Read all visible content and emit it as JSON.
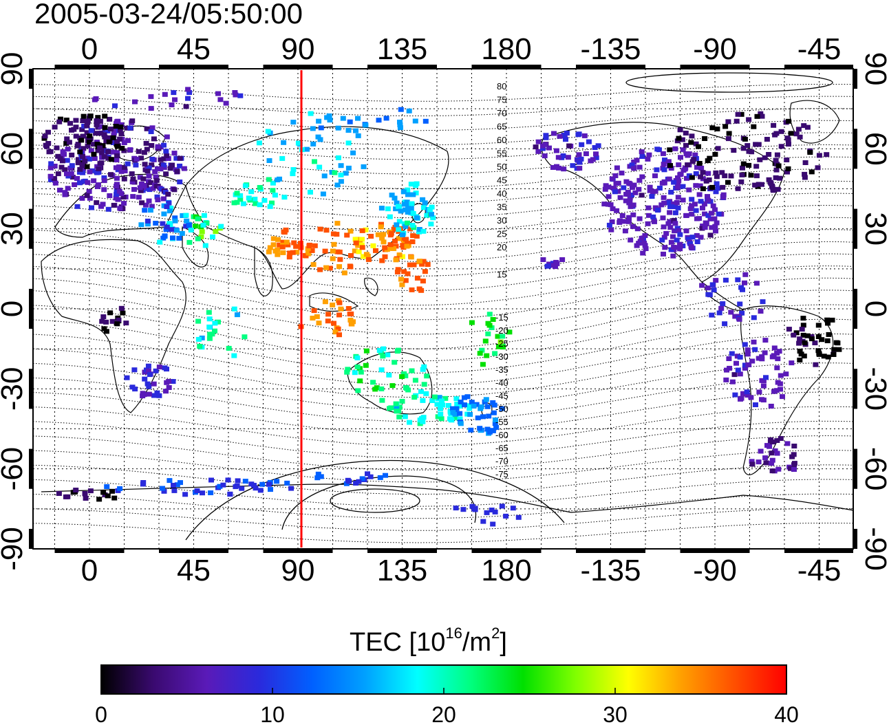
{
  "title": "2005-03-24/05:50:00",
  "map": {
    "x_ticks": [
      "0",
      "45",
      "90",
      "135",
      "180",
      "-135",
      "-90",
      "-45"
    ],
    "y_ticks": [
      "90",
      "60",
      "30",
      "0",
      "-30",
      "-60",
      "-90"
    ],
    "marker_longitude_label": "90",
    "marker_color": "#ff0000",
    "contour_labels_north": [
      "80",
      "75",
      "70",
      "65",
      "60",
      "55",
      "50",
      "45",
      "40",
      "35",
      "30",
      "25",
      "20",
      "15"
    ],
    "contour_labels_south": [
      "-15",
      "-20",
      "-25",
      "-30",
      "-35",
      "-40",
      "-45",
      "-50",
      "-55",
      "-60",
      "-65",
      "-70",
      "-75"
    ]
  },
  "colorbar": {
    "title_prefix": "TEC  [10",
    "title_exp": "16",
    "title_mid": "/m",
    "title_exp2": "2",
    "title_suffix": "]",
    "ticks": [
      "0",
      "10",
      "20",
      "30",
      "40"
    ],
    "colors": [
      "#000000",
      "#3a0a70",
      "#5a1ab8",
      "#2a2adc",
      "#0060ff",
      "#00a0ff",
      "#00ffff",
      "#00ff80",
      "#00e000",
      "#80ff00",
      "#ffff00",
      "#ffa000",
      "#ff5000",
      "#ff0000"
    ]
  }
}
